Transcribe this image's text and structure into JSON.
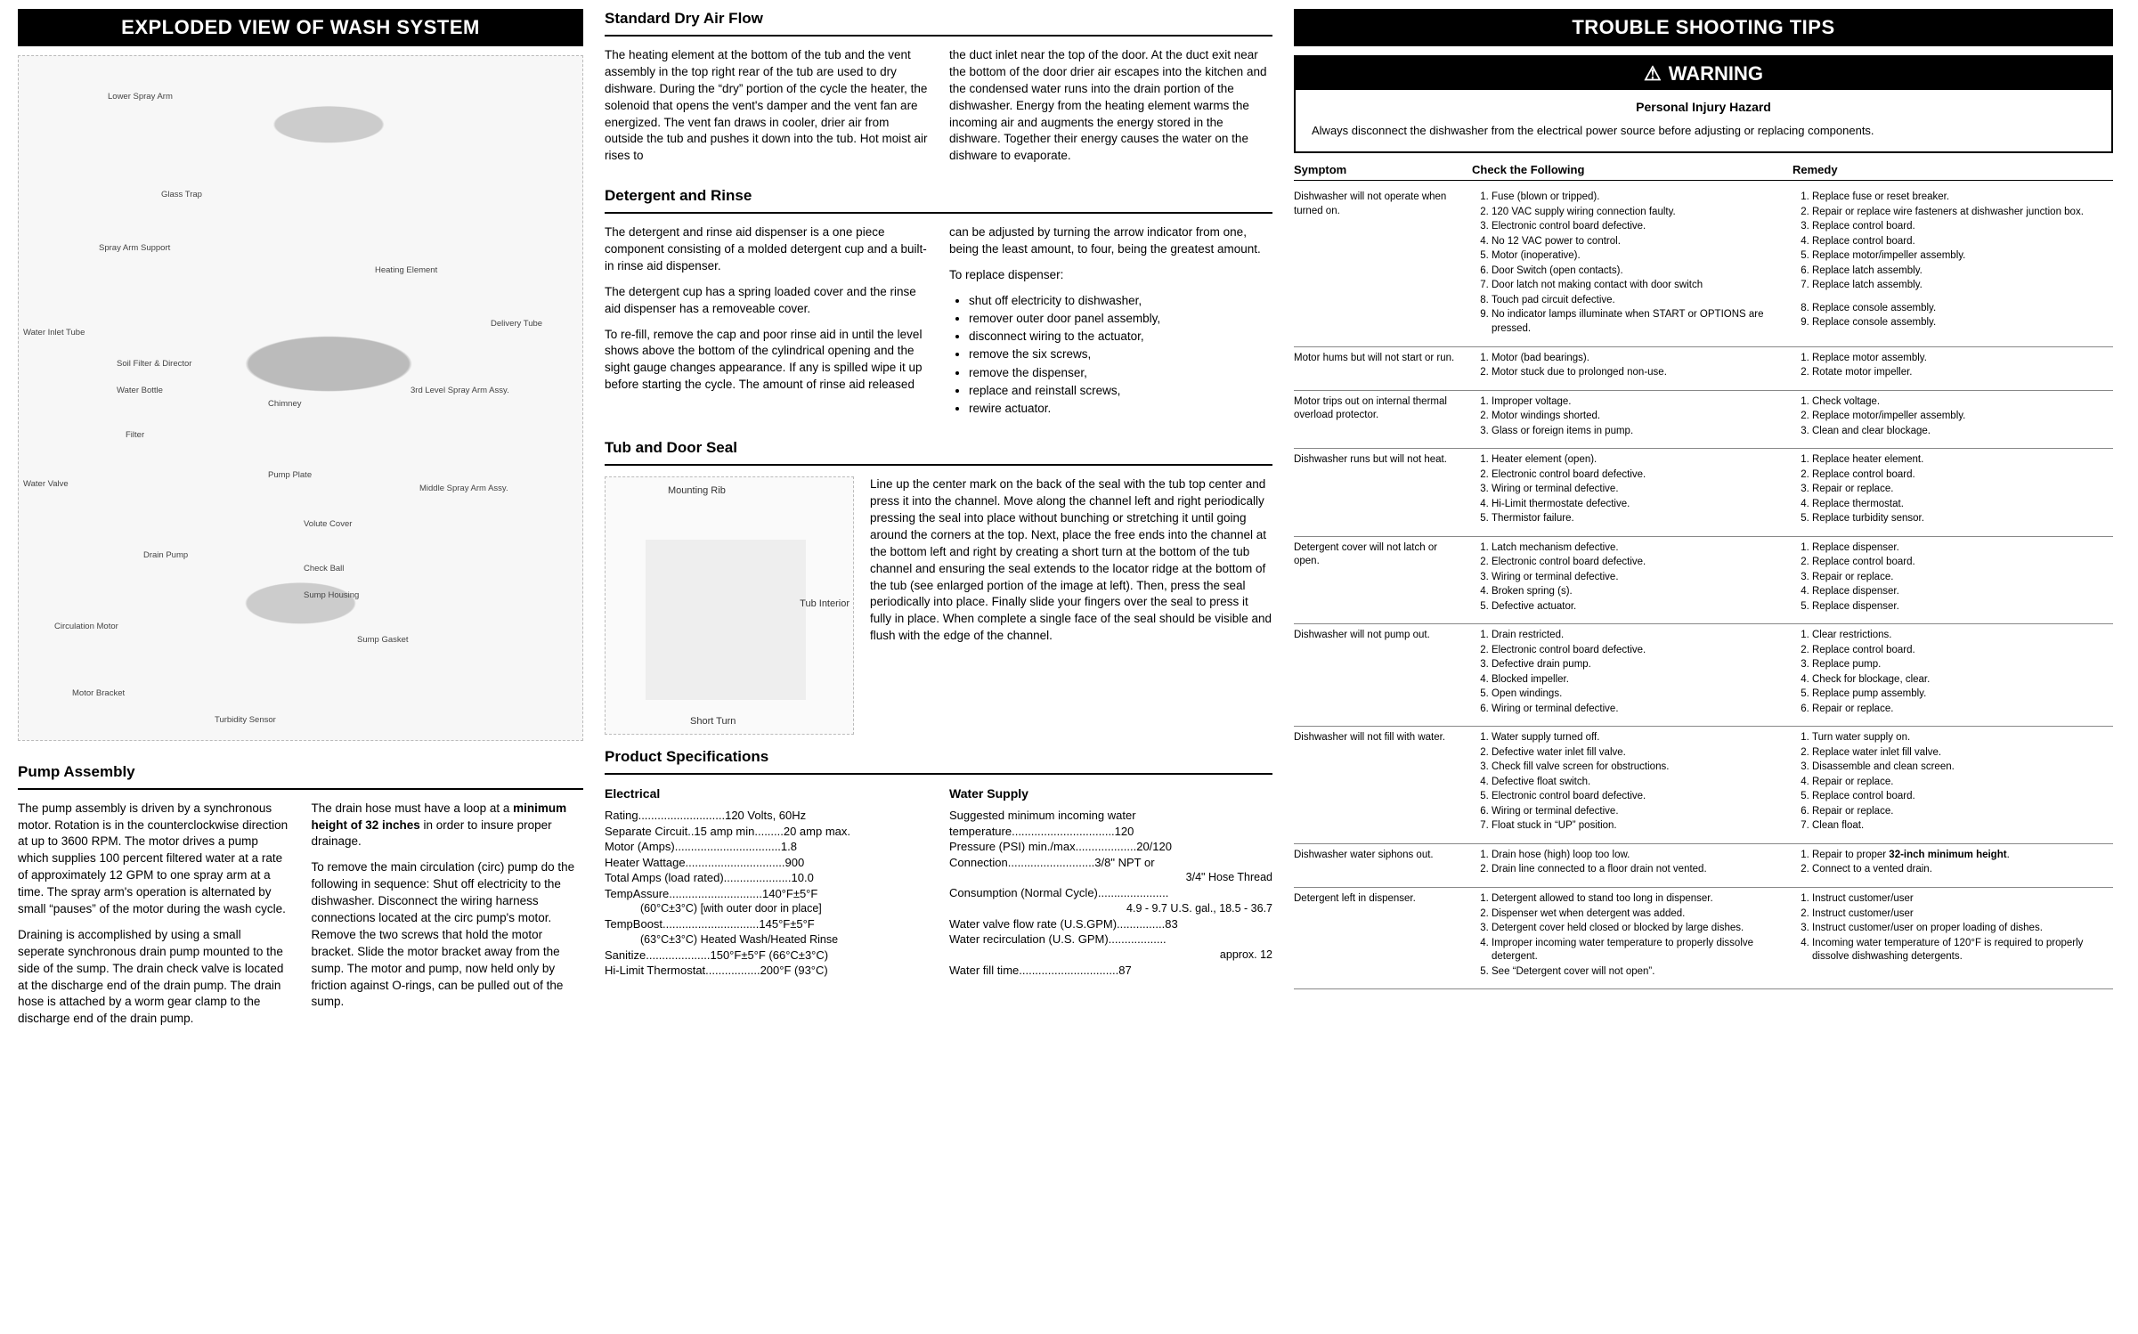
{
  "left": {
    "banner": "EXPLODED VIEW OF WASH SYSTEM",
    "diagram_labels": [
      "Lower Spray Arm",
      "Glass Trap",
      "Spray Arm Support",
      "Heating Element",
      "Water Inlet Tube",
      "Soil Filter & Director",
      "Delivery Tube",
      "Water Bottle",
      "Chimney",
      "3rd Level Spray Arm Assy.",
      "Filter",
      "Water Valve",
      "Pump Plate",
      "Middle Spray Arm Assy.",
      "Volute Cover",
      "Drain Pump",
      "Check Ball",
      "Sump Housing",
      "Circulation Motor",
      "Sump Gasket",
      "Motor Bracket",
      "Turbidity Sensor"
    ],
    "pump_title": "Pump Assembly",
    "pump_p1": "The pump assembly is driven by a synchronous motor.  Rotation is in the counterclockwise direction at up to 3600 RPM.  The motor drives a pump which supplies 100 percent filtered water at a rate of approximately 12 GPM to one spray arm at a time.  The spray arm's operation is alternated by small “pauses” of the motor during the wash cycle.",
    "pump_p2": "Draining is accomplished by using a small seperate synchronous drain pump mounted to the side of the sump.  The drain check valve is located at the discharge end of the drain pump.  The drain hose is attached by a worm gear clamp to the discharge end of the drain pump.",
    "pump_p3a": "The drain hose must have a loop at a ",
    "pump_p3b": "minimum height of 32 inches",
    "pump_p3c": " in order to insure proper drainage.",
    "pump_p4": "To remove the main circulation (circ) pump do the following in sequence: Shut off electricity to the dishwasher.  Disconnect the wiring harness connections located at the circ pump's motor.  Remove the two screws that hold the motor bracket.  Slide the motor bracket away from the sump.  The motor and pump, now held only by friction against O-rings, can be pulled out of the sump."
  },
  "mid": {
    "dry_title": "Standard Dry Air Flow",
    "dry_l": "The heating element at the bottom of the tub and the vent assembly in the top right rear of the tub are used to dry dishware.  During the “dry” portion of the cycle the heater, the solenoid that opens the vent's damper and the vent fan are energized.  The vent fan draws in cooler, drier air from outside the tub and pushes it down into the tub.  Hot moist air rises to",
    "dry_r": "the duct inlet near the top of the door.  At the duct exit near the bottom of the door drier air escapes into the kitchen and the condensed water runs into the drain portion of the dishwasher.  Energy from the heating element warms the incoming air and augments the energy stored in the dishware.  Together their energy causes the water on the dishware to evaporate.",
    "det_title": "Detergent and Rinse",
    "det_l1": "The detergent and rinse aid dispenser is a one piece component consisting of a molded detergent cup and a built-in rinse aid dispenser.",
    "det_l2": "The detergent cup has a spring loaded cover and the rinse aid dispenser has a removeable cover.",
    "det_l3": "To re-fill, remove the cap and poor rinse aid in until the level shows above the bottom of the cylindrical opening and the sight gauge changes appearance.  If any is spilled wipe it up before starting the cycle.  The amount of rinse aid released",
    "det_r1": "can be adjusted by turning the arrow indicator from one, being the least amount, to four, being the greatest amount.",
    "det_r2": "To replace dispenser:",
    "det_bullets": [
      "shut off electricity to dishwasher,",
      "remover outer door panel assembly,",
      "disconnect wiring to the actuator,",
      "remove the six screws,",
      "remove the dispenser,",
      "replace and reinstall screws,",
      "rewire actuator."
    ],
    "tub_title": "Tub and Door Seal",
    "tub_labels": {
      "a": "Mounting Rib",
      "b": "Tub Interior",
      "c": "Short Turn"
    },
    "tub_p": "Line up the center mark on the back of the seal with the tub top center and press it into the channel.  Move along the channel left and right periodically pressing the seal into place without bunching or stretching it until going around the corners at the top.  Next, place the free ends into the channel at the bottom left and right by creating a short turn at the bottom of the tub channel and ensuring the seal extends to the locator ridge at the bottom of the tub (see enlarged portion of the image at left).  Then, press the seal periodically into place.  Finally slide your fingers over the seal to press it fully in place.  When complete a single face of the seal should be visible and flush with the edge of the channel.",
    "spec_title": "Product Specifications",
    "elec_title": "Electrical",
    "elec": [
      {
        "l": "Rating",
        "r": "120 Volts, 60Hz"
      },
      {
        "l": "Separate Circuit..15 amp min",
        "r": "20 amp max."
      },
      {
        "l": "Motor (Amps)",
        "r": "1.8"
      },
      {
        "l": "Heater Wattage",
        "r": "900"
      },
      {
        "l": "Total Amps (load rated)",
        "r": "10.0"
      },
      {
        "l": "TempAssure",
        "r": "140°F±5°F"
      },
      {
        "l_sub": "(60°C±3°C) [with outer door in place]"
      },
      {
        "l": "TempBoost",
        "r": "145°F±5°F"
      },
      {
        "l_sub": "(63°C±3°C) Heated Wash/Heated Rinse"
      },
      {
        "l": "Sanitize",
        "r": "150°F±5°F (66°C±3°C)"
      },
      {
        "l": "Hi-Limit Thermostat",
        "r": "200°F (93°C)"
      }
    ],
    "water_title": "Water Supply",
    "water": [
      {
        "l": "Suggested minimum incoming water"
      },
      {
        "l": "  temperature",
        "r": "120"
      },
      {
        "l": "Pressure (PSI) min./max.",
        "r": "20/120"
      },
      {
        "l": "Connection",
        "r": "3/8\" NPT or"
      },
      {
        "l_sub_r": "3/4\" Hose Thread"
      },
      {
        "l": "Consumption (Normal Cycle)",
        "r": ""
      },
      {
        "l_sub_r": "4.9 - 9.7 U.S. gal., 18.5 - 36.7"
      },
      {
        "l": "Water valve flow rate (U.S.GPM)",
        "r": ".83"
      },
      {
        "l": "Water recirculation (U.S. GPM)",
        "r": ""
      },
      {
        "l_sub_r": "approx.  12"
      },
      {
        "l": "Water fill time",
        "r": ".87"
      }
    ]
  },
  "right": {
    "banner": "TROUBLE SHOOTING TIPS",
    "warn_head": "WARNING",
    "warn_title": "Personal Injury Hazard",
    "warn_body": "Always disconnect the dishwasher from the electrical power source before adjusting or replacing components.",
    "th": {
      "a": "Symptom",
      "b": "Check the Following",
      "c": "Remedy"
    },
    "rows": [
      {
        "s": "Dishwasher will not operate when turned on.",
        "c": [
          "Fuse (blown or tripped).",
          "120 VAC supply wiring connection faulty.",
          "Electronic control board defective.",
          "No 12 VAC power to control.",
          "Motor (inoperative).",
          "Door Switch (open contacts).",
          "Door latch not making contact with door switch",
          "Touch pad circuit defective.",
          "No indicator lamps illuminate when START or OPTIONS are pressed."
        ],
        "r": [
          "Replace fuse or reset breaker.",
          "Repair or replace wire fasteners at dishwasher junction box.",
          "Replace control board.",
          "Replace control board.",
          "Replace motor/impeller assembly.",
          "Replace latch assembly.",
          "Replace latch assembly.",
          "Replace console assembly.",
          "Replace console assembly."
        ],
        "gap_before_r": [
          0,
          0,
          0,
          0,
          0,
          0,
          0,
          1,
          0
        ]
      },
      {
        "s": "Motor hums but will not start or run.",
        "c": [
          "Motor (bad bearings).",
          "Motor stuck due to prolonged non-use."
        ],
        "r": [
          "Replace motor assembly.",
          "Rotate motor impeller."
        ]
      },
      {
        "s": "Motor trips out on internal thermal overload protector.",
        "c": [
          "Improper voltage.",
          "Motor windings shorted.",
          "Glass or foreign items in pump."
        ],
        "r": [
          "Check voltage.",
          "Replace motor/impeller assembly.",
          "Clean and clear blockage."
        ]
      },
      {
        "s": "Dishwasher runs but will not heat.",
        "c": [
          "Heater element (open).",
          "Electronic control board defective.",
          "Wiring or terminal defective.",
          "Hi-Limit thermostate defective.",
          "Thermistor failure."
        ],
        "r": [
          "Replace heater element.",
          "Replace control board.",
          "Repair or replace.",
          "Replace thermostat.",
          "Replace turbidity sensor."
        ]
      },
      {
        "s": "Detergent cover will not latch or open.",
        "c": [
          "Latch mechanism defective.",
          "Electronic control board defective.",
          "Wiring or terminal defective.",
          "Broken spring (s).",
          "Defective actuator."
        ],
        "r": [
          "Replace dispenser.",
          "Replace control board.",
          "Repair or replace.",
          "Replace dispenser.",
          "Replace dispenser."
        ]
      },
      {
        "s": "Dishwasher will not pump out.",
        "c": [
          "Drain restricted.",
          "Electronic control board defective.",
          "Defective drain pump.",
          "Blocked impeller.",
          "Open windings.",
          "Wiring or terminal defective."
        ],
        "r": [
          "Clear restrictions.",
          "Replace control board.",
          "Replace pump.",
          "Check for blockage, clear.",
          "Replace pump assembly.",
          "Repair or replace."
        ]
      },
      {
        "s": "Dishwasher will not fill with water.",
        "c": [
          "Water supply turned off.",
          "Defective water inlet fill valve.",
          "Check fill valve screen for obstructions.",
          "Defective float switch.",
          "Electronic control board defective.",
          "Wiring or terminal defective.",
          "Float stuck in “UP” position."
        ],
        "r": [
          "Turn water supply on.",
          "Replace water inlet fill valve.",
          "Disassemble and clean screen.",
          "Repair or replace.",
          "Replace control board.",
          "Repair or replace.",
          "Clean float."
        ]
      },
      {
        "s": "Dishwasher water siphons out.",
        "c": [
          "Drain hose (high) loop too low.",
          "Drain line connected to a floor drain not vented."
        ],
        "r_html": [
          "Repair to proper <b>32-inch minimum height</b>.",
          "Connect to a vented drain."
        ]
      },
      {
        "s": "Detergent left in dispenser.",
        "c": [
          "Detergent allowed to stand too long in dispenser.",
          "Dispenser wet when detergent was added.",
          "Detergent cover held closed or blocked by large dishes.",
          "Improper incoming water temperature to properly dissolve detergent.",
          "See “Detergent cover will not open”."
        ],
        "r": [
          "Instruct customer/user",
          "Instruct customer/user",
          "Instruct customer/user on proper loading of dishes.",
          "Incoming water temperature of 120°F is required to properly dissolve dishwashing detergents."
        ]
      }
    ]
  }
}
